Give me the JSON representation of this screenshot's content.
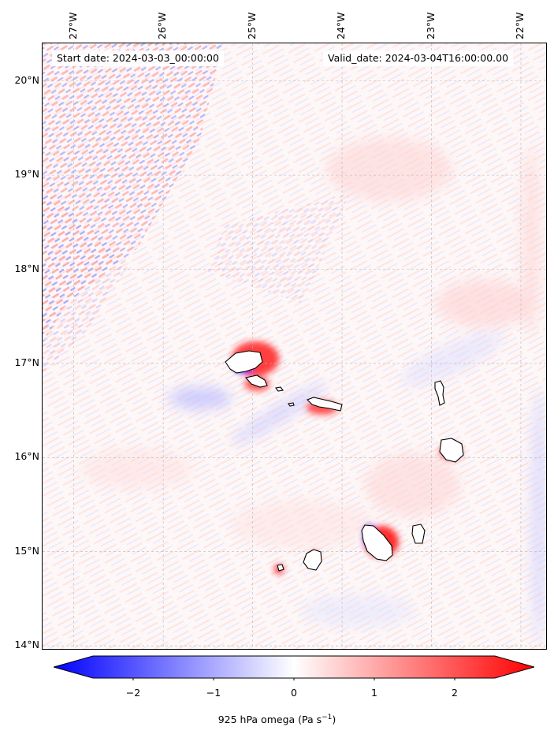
{
  "annotations": {
    "start_date": "Start date: 2024-03-03_00:00:00",
    "valid_date": "Valid_date: 2024-03-04T16:00:00.00"
  },
  "axes": {
    "lat_labels": [
      "20°N",
      "19°N",
      "18°N",
      "17°N",
      "16°N",
      "15°N",
      "14°N"
    ],
    "lon_labels": [
      "27°W",
      "26°W",
      "25°W",
      "24°W",
      "23°W",
      "22°W"
    ],
    "lat_range": [
      13.95,
      20.4
    ],
    "lon_range": [
      -27.35,
      -21.7
    ],
    "grid": true
  },
  "colorbar": {
    "label": "925 hPa omega (Pa s⁻¹)",
    "label_prefix": "925 hPa omega (Pa s",
    "label_sup": "−1",
    "label_suffix": ")",
    "ticks": [
      "−2",
      "−1",
      "0",
      "1",
      "2"
    ],
    "tick_values": [
      -2,
      -1,
      0,
      1,
      2
    ],
    "range": [
      -2.5,
      2.5
    ],
    "extend": "both",
    "colors": {
      "negative": "#0000ff",
      "zero": "#ffffff",
      "positive": "#ff0000"
    }
  },
  "map": {
    "field": "925 hPa omega",
    "colormap": "bwr",
    "islands": [
      "Santo Antão",
      "São Vicente",
      "Santa Luzia",
      "São Nicolau",
      "Sal",
      "Boa Vista",
      "Maio",
      "Santiago",
      "Fogo",
      "Brava"
    ]
  }
}
